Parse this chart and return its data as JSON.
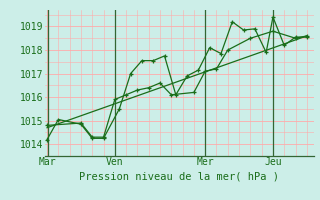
{
  "background_color": "#cceee8",
  "grid_color": "#ffaaaa",
  "line_color": "#1a6e1a",
  "axis_color": "#336633",
  "text_color": "#1a6e1a",
  "xlabel": "Pression niveau de la mer( hPa )",
  "ylim": [
    1013.6,
    1019.7
  ],
  "yticks": [
    1014,
    1015,
    1016,
    1017,
    1018,
    1019
  ],
  "xtick_labels": [
    "Mar",
    "Ven",
    "Mer",
    "Jeu"
  ],
  "xtick_positions": [
    0.0,
    3.0,
    7.0,
    10.0
  ],
  "xlim": [
    -0.1,
    11.8
  ],
  "series_main": {
    "x": [
      0.0,
      0.5,
      1.5,
      2.0,
      2.5,
      3.2,
      3.7,
      4.2,
      4.7,
      5.2,
      5.7,
      6.2,
      6.7,
      7.2,
      7.7,
      8.2,
      8.7,
      9.2,
      9.7,
      10.0,
      10.5,
      11.0,
      11.5
    ],
    "y": [
      1014.2,
      1015.05,
      1014.85,
      1014.25,
      1014.25,
      1015.5,
      1017.0,
      1017.55,
      1017.55,
      1017.75,
      1016.1,
      1016.9,
      1017.15,
      1018.1,
      1017.85,
      1019.2,
      1018.85,
      1018.9,
      1017.9,
      1019.4,
      1018.2,
      1018.55,
      1018.55
    ]
  },
  "series_lower": {
    "x": [
      0.0,
      1.5,
      2.0,
      2.5,
      3.0,
      3.5,
      4.0,
      4.5,
      5.0,
      5.5,
      6.5,
      7.0,
      7.5,
      8.0,
      9.0,
      10.0,
      11.0,
      11.5
    ],
    "y": [
      1014.8,
      1014.9,
      1014.3,
      1014.3,
      1015.9,
      1016.1,
      1016.3,
      1016.4,
      1016.6,
      1016.1,
      1016.2,
      1017.1,
      1017.2,
      1018.0,
      1018.5,
      1018.8,
      1018.5,
      1018.6
    ]
  },
  "series_trend": {
    "x": [
      0.0,
      11.5
    ],
    "y": [
      1014.7,
      1018.6
    ]
  },
  "vlines": [
    0.02,
    3.0,
    7.0,
    10.0
  ]
}
